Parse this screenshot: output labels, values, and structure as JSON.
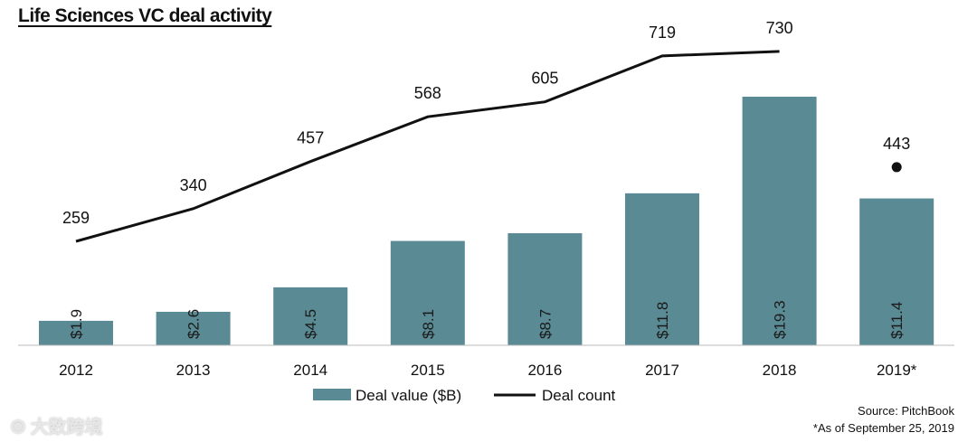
{
  "chart_data": {
    "type": "bar+line",
    "title": "Life Sciences VC deal activity",
    "categories": [
      "2012",
      "2013",
      "2014",
      "2015",
      "2016",
      "2017",
      "2018",
      "2019*"
    ],
    "series": [
      {
        "name": "Deal value ($B)",
        "type": "bar",
        "values": [
          1.9,
          2.6,
          4.5,
          8.1,
          8.7,
          11.8,
          19.3,
          11.4
        ],
        "labels": [
          "$1.9",
          "$2.6",
          "$4.5",
          "$8.1",
          "$8.7",
          "$11.8",
          "$19.3",
          "$11.4"
        ],
        "color": "#5a8a94"
      },
      {
        "name": "Deal count",
        "type": "line",
        "values": [
          259,
          340,
          457,
          568,
          605,
          719,
          730,
          443
        ],
        "color": "#111111",
        "note": "2019* shown as separate point"
      }
    ],
    "legend_position": "bottom",
    "grid": false
  },
  "source": "Source: PitchBook",
  "footnote": "*As of September 25, 2019",
  "watermark": "大数跨境"
}
